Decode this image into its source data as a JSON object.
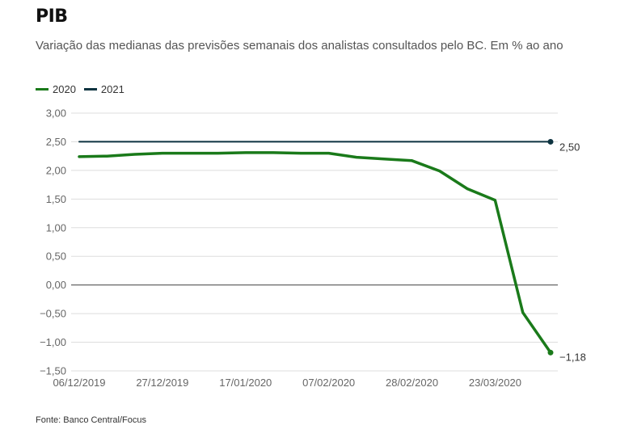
{
  "header": {
    "title": "PIB",
    "subtitle": "Variação das medianas das previsões semanais dos analistas consultados pelo BC. Em % ao ano"
  },
  "footer": {
    "source": "Fonte: Banco Central/Focus"
  },
  "colors": {
    "series_2020": "#1a7a1a",
    "series_2021": "#0d3340",
    "grid": "#dddddd",
    "zero_line": "#555555"
  },
  "chart_data": {
    "type": "line",
    "title": "PIB",
    "subtitle": "Variação das medianas das previsões semanais dos analistas consultados pelo BC. Em % ao ano",
    "xlabel": "",
    "ylabel": "",
    "ylim": [
      -1.5,
      3.0
    ],
    "yticks": [
      3.0,
      2.5,
      2.0,
      1.5,
      1.0,
      0.5,
      0.0,
      -0.5,
      -1.0,
      -1.5
    ],
    "ytick_labels": [
      "3,00",
      "2,50",
      "2,00",
      "1,50",
      "1,00",
      "0,50",
      "0,00",
      "−0,50",
      "−1,00",
      "−1,50"
    ],
    "xtick_labels": [
      "06/12/2019",
      "27/12/2019",
      "17/01/2020",
      "07/02/2020",
      "28/02/2020",
      "23/03/2020"
    ],
    "xtick_indices": [
      0,
      3,
      6,
      9,
      12,
      15
    ],
    "num_points": 18,
    "grid": true,
    "legend_position": "top-left",
    "series": [
      {
        "name": "2020",
        "values": [
          2.24,
          2.25,
          2.28,
          2.3,
          2.3,
          2.3,
          2.31,
          2.31,
          2.3,
          2.3,
          2.23,
          2.2,
          2.17,
          1.99,
          1.68,
          1.48,
          -0.48,
          -1.18
        ],
        "end_label": "−1,18"
      },
      {
        "name": "2021",
        "values": [
          2.5,
          2.5,
          2.5,
          2.5,
          2.5,
          2.5,
          2.5,
          2.5,
          2.5,
          2.5,
          2.5,
          2.5,
          2.5,
          2.5,
          2.5,
          2.5,
          2.5,
          2.5
        ],
        "end_label": "2,50"
      }
    ]
  }
}
